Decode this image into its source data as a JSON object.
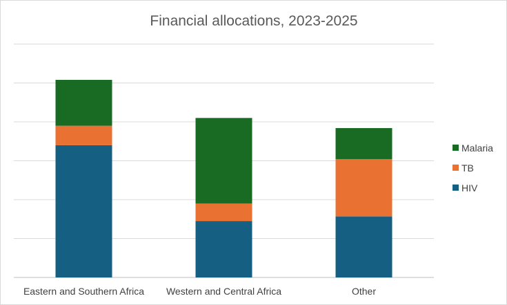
{
  "chart_data": {
    "type": "bar",
    "stacked": true,
    "title": "Financial allocations, 2023-2025",
    "xlabel": "",
    "ylabel": "",
    "categories": [
      "Eastern and Southern Africa",
      "Western and Central Africa",
      "Other"
    ],
    "series": [
      {
        "name": "HIV",
        "color": "#156082",
        "values": [
          3.4,
          1.45,
          1.57
        ]
      },
      {
        "name": "TB",
        "color": "#E97132",
        "values": [
          0.5,
          0.45,
          1.47
        ]
      },
      {
        "name": "Malaria",
        "color": "#196B24",
        "values": [
          1.18,
          2.2,
          0.8
        ]
      }
    ],
    "ylim": [
      0,
      6
    ],
    "y_gridlines": [
      0,
      1,
      2,
      3,
      4,
      5,
      6
    ],
    "y_tick_labels_visible": false,
    "grid": true,
    "legend_position": "right",
    "legend_order": [
      "Malaria",
      "TB",
      "HIV"
    ]
  }
}
